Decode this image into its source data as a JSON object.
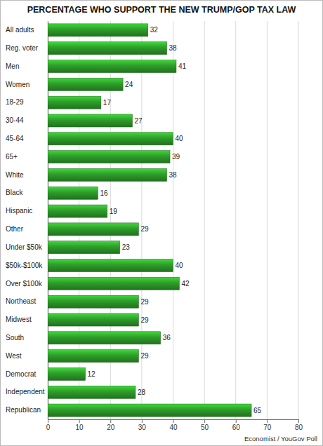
{
  "chart_data": {
    "type": "bar",
    "orientation": "horizontal",
    "title": "PERCENTAGE WHO SUPPORT THE NEW TRUMP/GOP TAX LAW",
    "source": "Economist / YouGov Poll",
    "categories": [
      "All adults",
      "Reg. voter",
      "Men",
      "Women",
      "18-29",
      "30-44",
      "45-64",
      "65+",
      "White",
      "Black",
      "Hispanic",
      "Other",
      "Under $50k",
      "$50k-$100k",
      "Over $100k",
      "Northeast",
      "Midwest",
      "South",
      "West",
      "Democrat",
      "Independent",
      "Republican"
    ],
    "values": [
      32,
      38,
      41,
      24,
      17,
      27,
      40,
      39,
      38,
      16,
      19,
      29,
      23,
      40,
      42,
      29,
      29,
      36,
      29,
      12,
      28,
      65
    ],
    "color": "#2e9d2a",
    "xlim": [
      0,
      80
    ],
    "xticks": [
      0,
      10,
      20,
      30,
      40,
      50,
      60,
      70,
      80
    ],
    "grid": true,
    "data_labels": true
  }
}
